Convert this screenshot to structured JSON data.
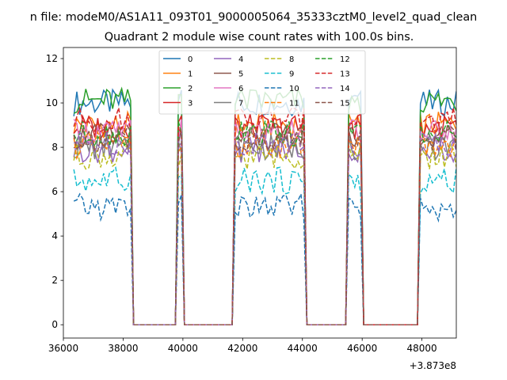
{
  "suptitle": "n file: modeM0/AS1A11_093T01_9000005064_35333cztM0_level2_quad_clean",
  "chart_data": {
    "type": "line",
    "title": "Quadrant 2 module wise count rates with 100.0s bins.",
    "xlabel": "",
    "ylabel": "",
    "x_offset_label": "+3.873e8",
    "xlim": [
      36000,
      49150
    ],
    "ylim": [
      -0.6,
      12.5
    ],
    "xticks": [
      36000,
      38000,
      40000,
      42000,
      44000,
      46000,
      48000
    ],
    "yticks": [
      0,
      2,
      4,
      6,
      8,
      10,
      12
    ],
    "grid": false,
    "legend_position": "top-center",
    "legend_columns": 4,
    "time_segments": [
      {
        "start": 36350,
        "end": 38250
      },
      {
        "start": 39850,
        "end": 39950
      },
      {
        "start": 41750,
        "end": 44050
      },
      {
        "start": 45550,
        "end": 45950
      },
      {
        "start": 47950,
        "end": 49150
      }
    ],
    "gap_value": 0,
    "series": [
      {
        "name": "0",
        "color": "#1f77b4",
        "dash": "solid",
        "level": 10.0
      },
      {
        "name": "1",
        "color": "#ff7f0e",
        "dash": "solid",
        "level": 9.0
      },
      {
        "name": "2",
        "color": "#2ca02c",
        "dash": "solid",
        "level": 10.1
      },
      {
        "name": "3",
        "color": "#d62728",
        "dash": "solid",
        "level": 8.9
      },
      {
        "name": "4",
        "color": "#9467bd",
        "dash": "solid",
        "level": 7.9
      },
      {
        "name": "5",
        "color": "#8c564b",
        "dash": "solid",
        "level": 8.5
      },
      {
        "name": "6",
        "color": "#e377c2",
        "dash": "solid",
        "level": 8.7
      },
      {
        "name": "7",
        "color": "#7f7f7f",
        "dash": "solid",
        "level": 8.0
      },
      {
        "name": "8",
        "color": "#bcbd22",
        "dash": "dashed",
        "level": 7.6
      },
      {
        "name": "9",
        "color": "#17becf",
        "dash": "dashed",
        "level": 6.5
      },
      {
        "name": "10",
        "color": "#1f77b4",
        "dash": "dashed",
        "level": 5.3
      },
      {
        "name": "11",
        "color": "#ff7f0e",
        "dash": "dashed",
        "level": 8.1
      },
      {
        "name": "12",
        "color": "#2ca02c",
        "dash": "dashed",
        "level": 8.6
      },
      {
        "name": "13",
        "color": "#d62728",
        "dash": "dashed",
        "level": 9.2
      },
      {
        "name": "14",
        "color": "#9467bd",
        "dash": "dashed",
        "level": 8.2
      },
      {
        "name": "15",
        "color": "#8c564b",
        "dash": "dashed",
        "level": 8.4
      }
    ]
  }
}
